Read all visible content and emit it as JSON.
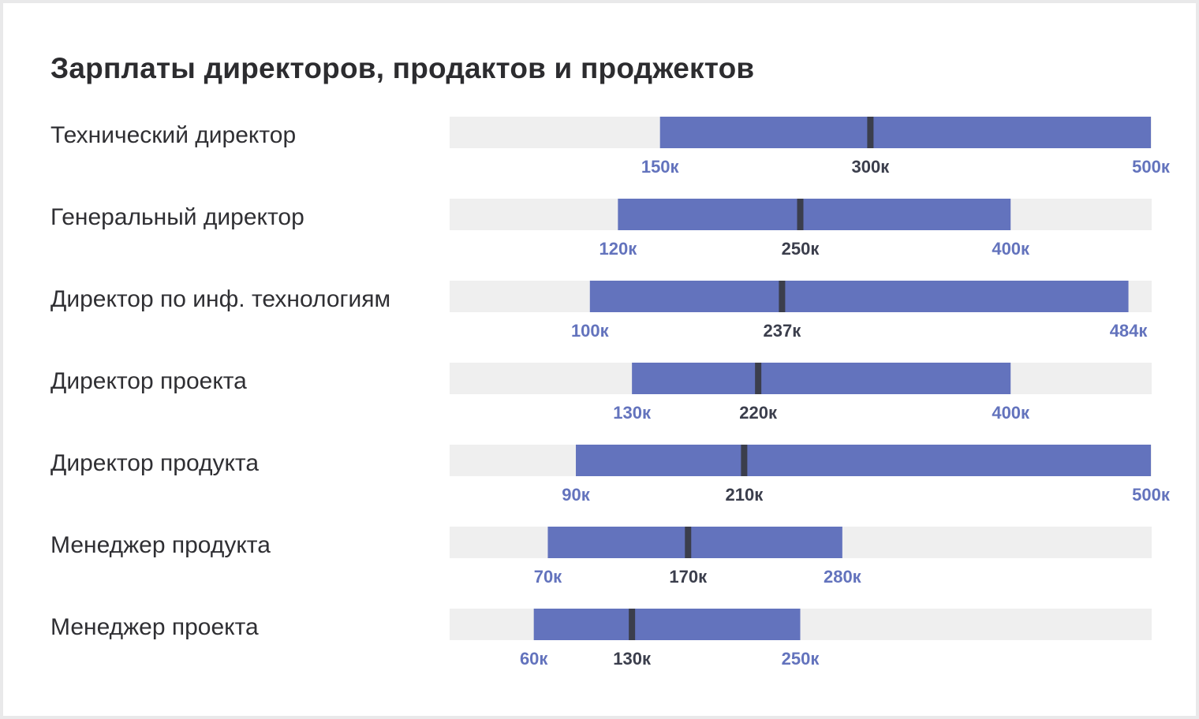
{
  "colors": {
    "track": "#efefef",
    "bar": "#6373bd",
    "median_marker": "#3b3e4c",
    "range_label": "#6373bd",
    "median_label": "#3b3e4c",
    "title": "#2c2c2f",
    "row_label": "#2f2f33"
  },
  "chart_data": {
    "type": "bar",
    "subtype": "range-with-median",
    "title": "Зарплаты директоров, продактов и проджектов",
    "xlim": [
      0,
      500
    ],
    "unit_suffix": "к",
    "rows": [
      {
        "label": "Технический директор",
        "min": 150,
        "median": 300,
        "max": 500,
        "min_label": "150к",
        "median_label": "300к",
        "max_label": "500к"
      },
      {
        "label": "Генеральный директор",
        "min": 120,
        "median": 250,
        "max": 400,
        "min_label": "120к",
        "median_label": "250к",
        "max_label": "400к"
      },
      {
        "label": "Директор по инф. технологиям",
        "min": 100,
        "median": 237,
        "max": 484,
        "min_label": "100к",
        "median_label": "237к",
        "max_label": "484к"
      },
      {
        "label": "Директор проекта",
        "min": 130,
        "median": 220,
        "max": 400,
        "min_label": "130к",
        "median_label": "220к",
        "max_label": "400к"
      },
      {
        "label": "Директор продукта",
        "min": 90,
        "median": 210,
        "max": 500,
        "min_label": "90к",
        "median_label": "210к",
        "max_label": "500к"
      },
      {
        "label": "Менеджер продукта",
        "min": 70,
        "median": 170,
        "max": 280,
        "min_label": "70к",
        "median_label": "170к",
        "max_label": "280к"
      },
      {
        "label": "Менеджер проекта",
        "min": 60,
        "median": 130,
        "max": 250,
        "min_label": "60к",
        "median_label": "130к",
        "max_label": "250к"
      }
    ]
  }
}
